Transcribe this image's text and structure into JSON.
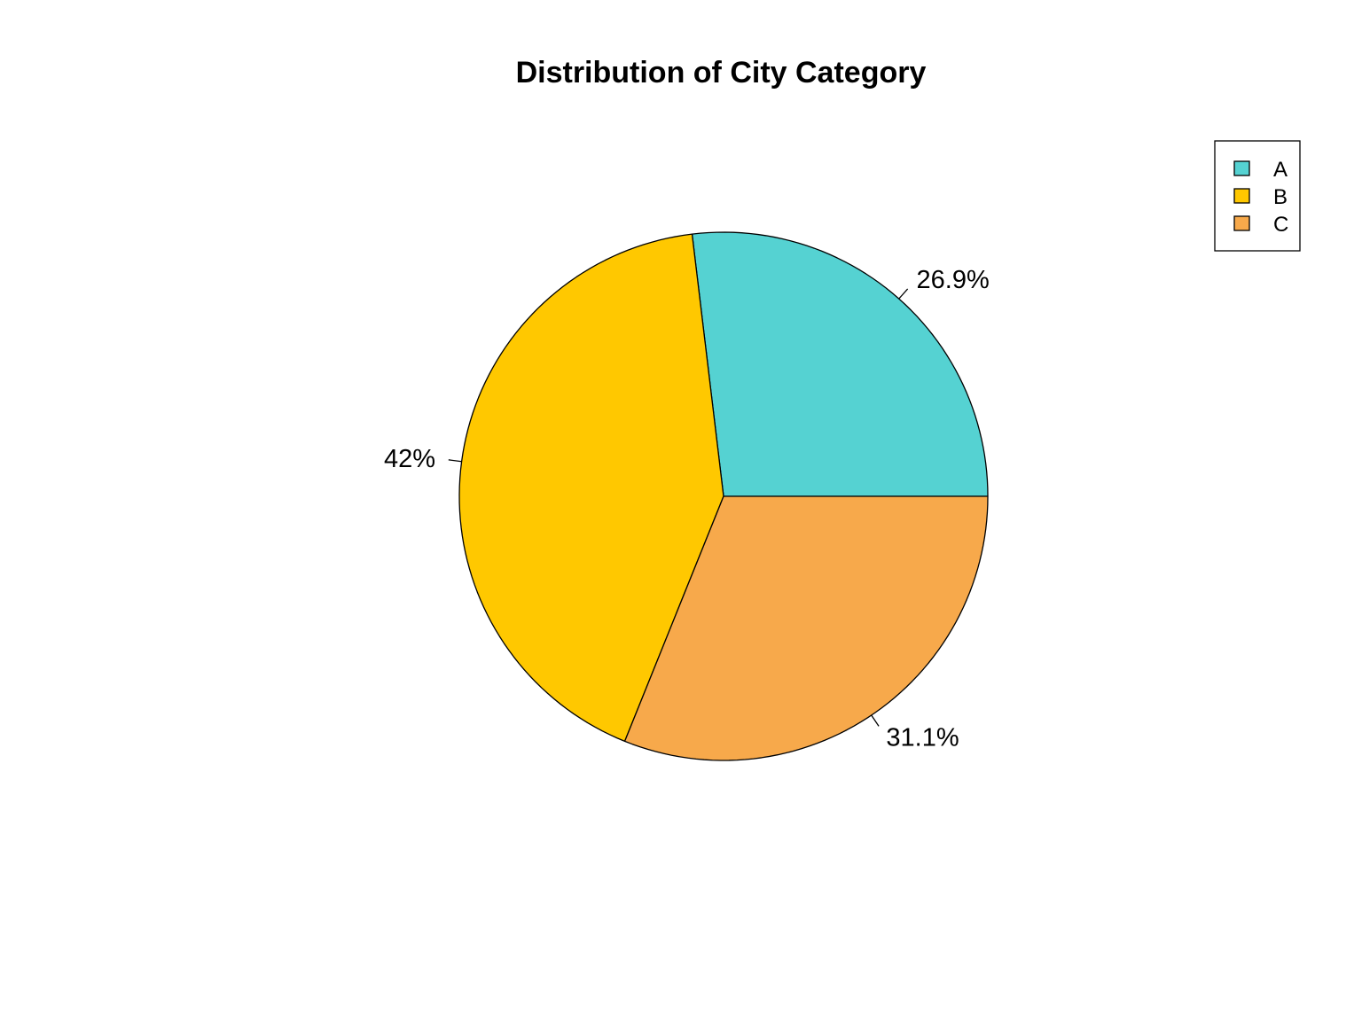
{
  "chart_data": {
    "type": "pie",
    "title": "Distribution of City Category",
    "start_angle_deg": 0,
    "direction": "counterclockwise",
    "slices": [
      {
        "category": "A",
        "value": 26.9,
        "label": "26.9%",
        "color": "#55D2D2"
      },
      {
        "category": "B",
        "value": 42.0,
        "label": "42%",
        "color": "#FFC800"
      },
      {
        "category": "C",
        "value": 31.1,
        "label": "31.1%",
        "color": "#F7A94B"
      }
    ],
    "legend": {
      "position": "top-right",
      "entries": [
        "A",
        "B",
        "C"
      ]
    }
  }
}
